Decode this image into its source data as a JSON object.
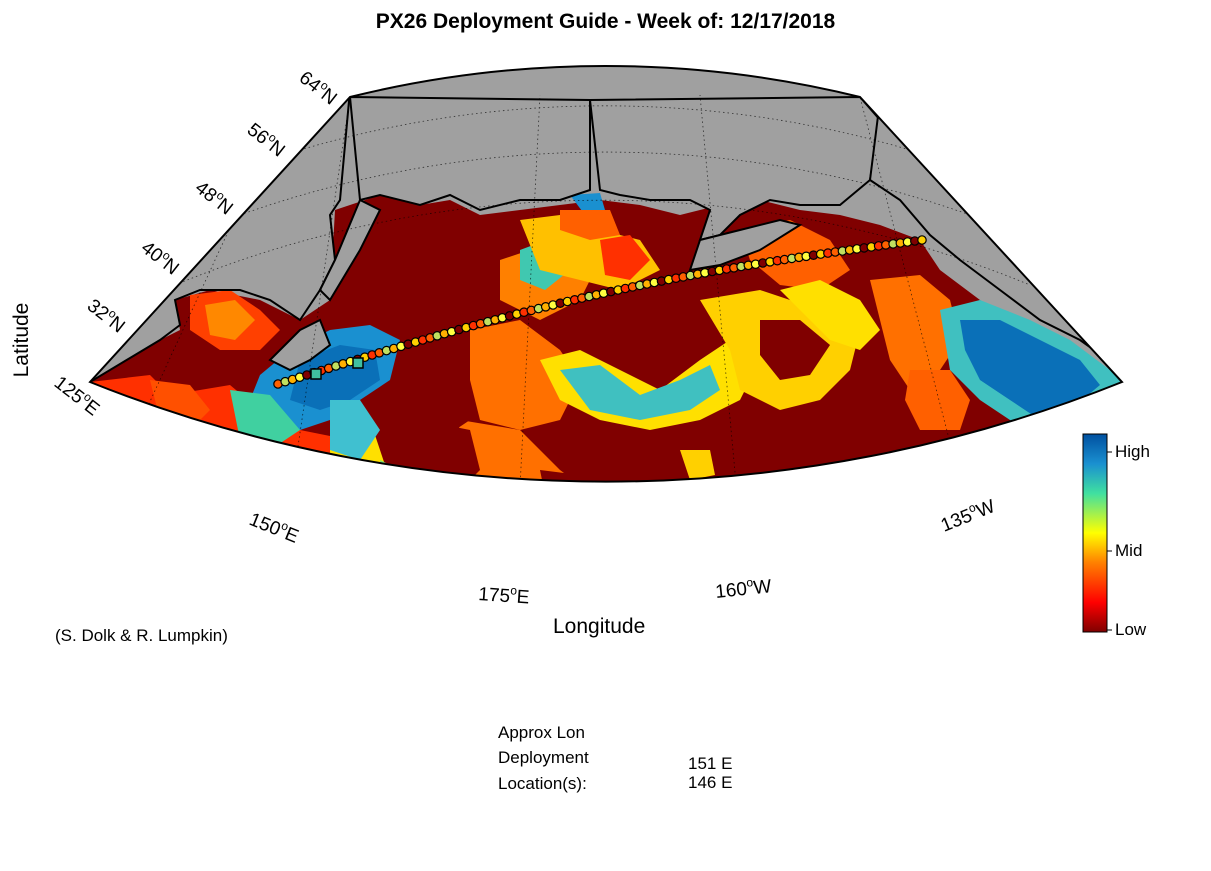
{
  "title": "PX26 Deployment Guide - Week of: 12/17/2018",
  "map": {
    "xlabel": "Longitude",
    "ylabel": "Latitude",
    "lat_labels": [
      "64",
      "56",
      "48",
      "40",
      "32"
    ],
    "lat_suffix": "N",
    "lon_labels": [
      {
        "value": "125",
        "hemi": "E"
      },
      {
        "value": "150",
        "hemi": "E"
      },
      {
        "value": "175",
        "hemi": "E"
      },
      {
        "value": "160",
        "hemi": "W"
      },
      {
        "value": "135",
        "hemi": "W"
      }
    ],
    "land_color": "#a0a0a0",
    "ocean_low_color": "#800000",
    "track_point_count": 90,
    "deployment_markers": 2
  },
  "colorbar": {
    "labels": {
      "high": "High",
      "mid": "Mid",
      "low": "Low"
    },
    "stops": [
      "#800000",
      "#ff0000",
      "#ff8000",
      "#ffff00",
      "#40e0a0",
      "#1a90d0",
      "#0050a0"
    ]
  },
  "credit": "(S. Dolk & R. Lumpkin)",
  "deployment": {
    "header": "Approx Lon",
    "label1": "Deployment",
    "label2": "Location(s):",
    "values": [
      "151 E",
      "146 E"
    ]
  }
}
